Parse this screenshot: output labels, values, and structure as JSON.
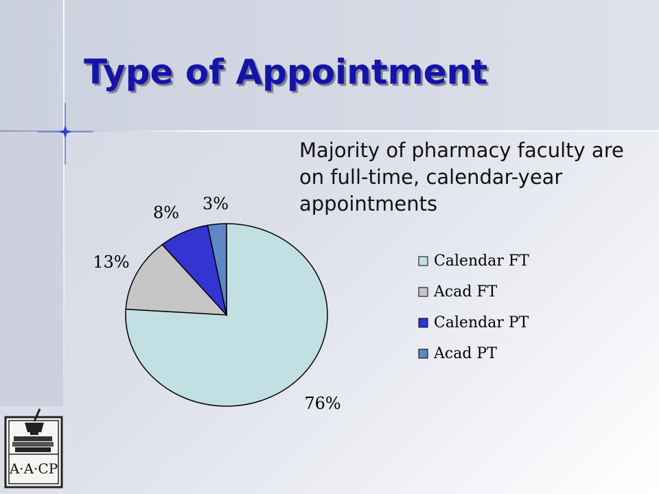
{
  "slide": {
    "title": "Type of Appointment",
    "bullet": "Majority of pharmacy faculty are on full-time, calendar-year appointments"
  },
  "logo": {
    "text": "A·A·CP"
  },
  "chart_data": {
    "type": "pie",
    "title": "",
    "categories": [
      "Calendar FT",
      "Acad FT",
      "Calendar PT",
      "Acad PT"
    ],
    "values": [
      76,
      13,
      8,
      3
    ],
    "labels": [
      "76%",
      "13%",
      "8%",
      "3%"
    ],
    "colors": [
      "#c2dfe4",
      "#c6c6c6",
      "#3434d0",
      "#5e88c4"
    ],
    "legend_position": "right"
  }
}
